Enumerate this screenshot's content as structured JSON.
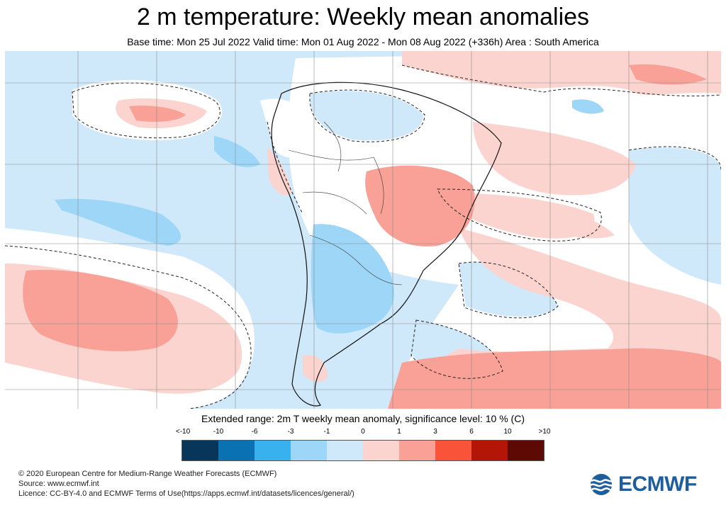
{
  "header": {
    "title": "2 m temperature: Weekly mean anomalies",
    "subtitle": "Base time: Mon 25 Jul 2022 Valid time: Mon 01 Aug 2022 - Mon 08 Aug 2022 (+336h) Area : South America"
  },
  "map": {
    "region": "South America",
    "background_color": "#cfe9fb",
    "features": [
      "temperature-anomaly-fields",
      "coastlines",
      "country-borders",
      "significance-contours",
      "graticule"
    ]
  },
  "colorbar": {
    "title": "Extended range: 2m T weekly mean anomaly, significance level: 10 % (C)",
    "labels": [
      "<-10",
      "-10",
      "-6",
      "-3",
      "-1",
      "0",
      "1",
      "3",
      "6",
      "10",
      ">10"
    ],
    "colors": [
      "#08365a",
      "#0a72b3",
      "#38b1ee",
      "#9dd6f7",
      "#cfe9fb",
      "#fcd4cf",
      "#f9a197",
      "#f9533a",
      "#b31606",
      "#5e0a04"
    ]
  },
  "footer": {
    "copyright": "© 2020 European Centre for Medium-Range Weather Forecasts (ECMWF)",
    "source": "Source: www.ecmwf.int",
    "licence": "Licence: CC-BY-4.0 and ECMWF Terms of Use(https://apps.ecmwf.int/datasets/licences/general/)"
  },
  "logo": {
    "text": "ECMWF",
    "color": "#1f5e9c",
    "icon": "ecmwf-wave-icon"
  }
}
